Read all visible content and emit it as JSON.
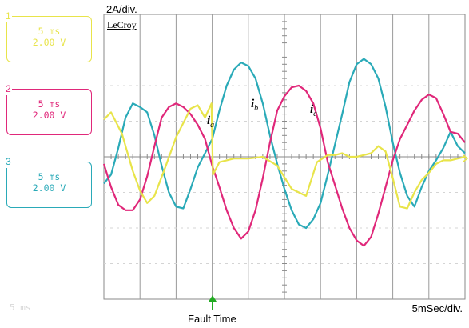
{
  "header": {
    "scale": "2A/div."
  },
  "brand": "LeCroy",
  "channels": [
    {
      "number": "1",
      "time": "5 ms",
      "volts": "2.00 V",
      "color": "#e8e44a"
    },
    {
      "number": "2",
      "time": "5 ms",
      "volts": "2.00 V",
      "color": "#e0287a"
    },
    {
      "number": "3",
      "time": "5 ms",
      "volts": "2.00 V",
      "color": "#2aaab8"
    }
  ],
  "footer": {
    "timebase": "5mSec/div.",
    "fault_label": "Fault Time",
    "idle_channel": "5 ms"
  },
  "trace_labels": [
    {
      "base": "i",
      "sub": "a"
    },
    {
      "base": "i",
      "sub": "b"
    },
    {
      "base": "i",
      "sub": "c"
    }
  ],
  "chart_data": {
    "type": "line",
    "title": "",
    "xlabel": "5mSec/div.",
    "ylabel": "2A/div.",
    "grid": true,
    "x_unit": "ms",
    "y_unit": "A",
    "xlim": [
      0,
      50
    ],
    "ylim": [
      -8,
      8
    ],
    "fault_time_ms": 15,
    "series": [
      {
        "name": "ia",
        "color": "#e8e44a",
        "x": [
          0,
          1,
          2.5,
          4,
          5,
          6,
          7,
          8.5,
          10,
          11,
          12,
          13,
          14,
          14.9,
          15.1,
          16,
          18,
          20,
          22,
          24,
          26,
          28,
          29.5,
          31,
          32,
          33,
          34,
          35,
          36,
          37,
          38,
          39,
          40,
          41,
          42,
          43,
          44,
          45,
          46,
          47,
          48,
          49,
          50
        ],
        "y": [
          2.1,
          2.5,
          1.3,
          -0.8,
          -1.9,
          -2.6,
          -2.2,
          -0.6,
          1.1,
          1.9,
          2.7,
          2.9,
          2.2,
          3.0,
          -1.0,
          -0.3,
          -0.1,
          -0.1,
          0.0,
          -0.5,
          -1.8,
          -2.2,
          -0.3,
          0.1,
          0.1,
          0.2,
          0.0,
          0.0,
          0.1,
          0.2,
          0.6,
          0.3,
          -1.2,
          -2.8,
          -2.9,
          -2.0,
          -1.3,
          -0.9,
          -0.4,
          -0.2,
          -0.2,
          -0.1,
          0.0
        ]
      },
      {
        "name": "ib",
        "color": "#2aaab8",
        "x": [
          0,
          1,
          2,
          3,
          4,
          5,
          6,
          7,
          8,
          9,
          10,
          11,
          12,
          13,
          14,
          15,
          16,
          17,
          18,
          19,
          20,
          21,
          22,
          23,
          24,
          25,
          26,
          27,
          28,
          29,
          30,
          31,
          32,
          33,
          34,
          35,
          36,
          37,
          38,
          39,
          40,
          41,
          42,
          43,
          44,
          45,
          46,
          47,
          48,
          49,
          50
        ],
        "y": [
          -1.5,
          -1.0,
          0.5,
          2.2,
          3.0,
          2.8,
          2.5,
          1.2,
          -0.5,
          -2.0,
          -2.8,
          -2.9,
          -1.8,
          -0.6,
          0.2,
          1.0,
          2.6,
          4.0,
          4.9,
          5.3,
          5.1,
          4.4,
          3.0,
          1.2,
          -0.4,
          -1.8,
          -3.0,
          -3.8,
          -4.0,
          -3.5,
          -2.6,
          -1.0,
          0.7,
          2.4,
          4.2,
          5.2,
          5.5,
          5.2,
          4.4,
          2.8,
          0.8,
          -0.9,
          -2.2,
          -2.8,
          -1.7,
          -0.8,
          -0.2,
          0.5,
          1.4,
          0.6,
          0.2
        ]
      },
      {
        "name": "ic",
        "color": "#e0287a",
        "x": [
          0,
          1,
          2,
          3,
          4,
          5,
          6,
          7,
          8,
          9,
          10,
          11,
          12,
          13,
          14,
          15,
          16,
          17,
          18,
          19,
          20,
          21,
          22,
          23,
          24,
          25,
          26,
          27,
          28,
          29,
          30,
          31,
          32,
          33,
          34,
          35,
          36,
          37,
          38,
          39,
          40,
          41,
          42,
          43,
          44,
          45,
          46,
          47,
          48,
          49,
          50
        ],
        "y": [
          -0.4,
          -1.7,
          -2.7,
          -3.0,
          -3.0,
          -2.4,
          -1.1,
          0.6,
          2.2,
          2.8,
          3.0,
          2.8,
          2.4,
          1.8,
          1.0,
          -0.5,
          -1.7,
          -3.0,
          -4.0,
          -4.6,
          -4.2,
          -3.0,
          -1.2,
          0.8,
          2.6,
          3.4,
          3.9,
          4.0,
          3.7,
          3.0,
          1.6,
          -0.3,
          -1.6,
          -2.9,
          -4.0,
          -4.7,
          -5.0,
          -4.5,
          -3.2,
          -1.7,
          -0.2,
          1.0,
          1.8,
          2.6,
          3.2,
          3.5,
          3.3,
          2.4,
          1.4,
          1.3,
          0.8
        ]
      }
    ]
  }
}
